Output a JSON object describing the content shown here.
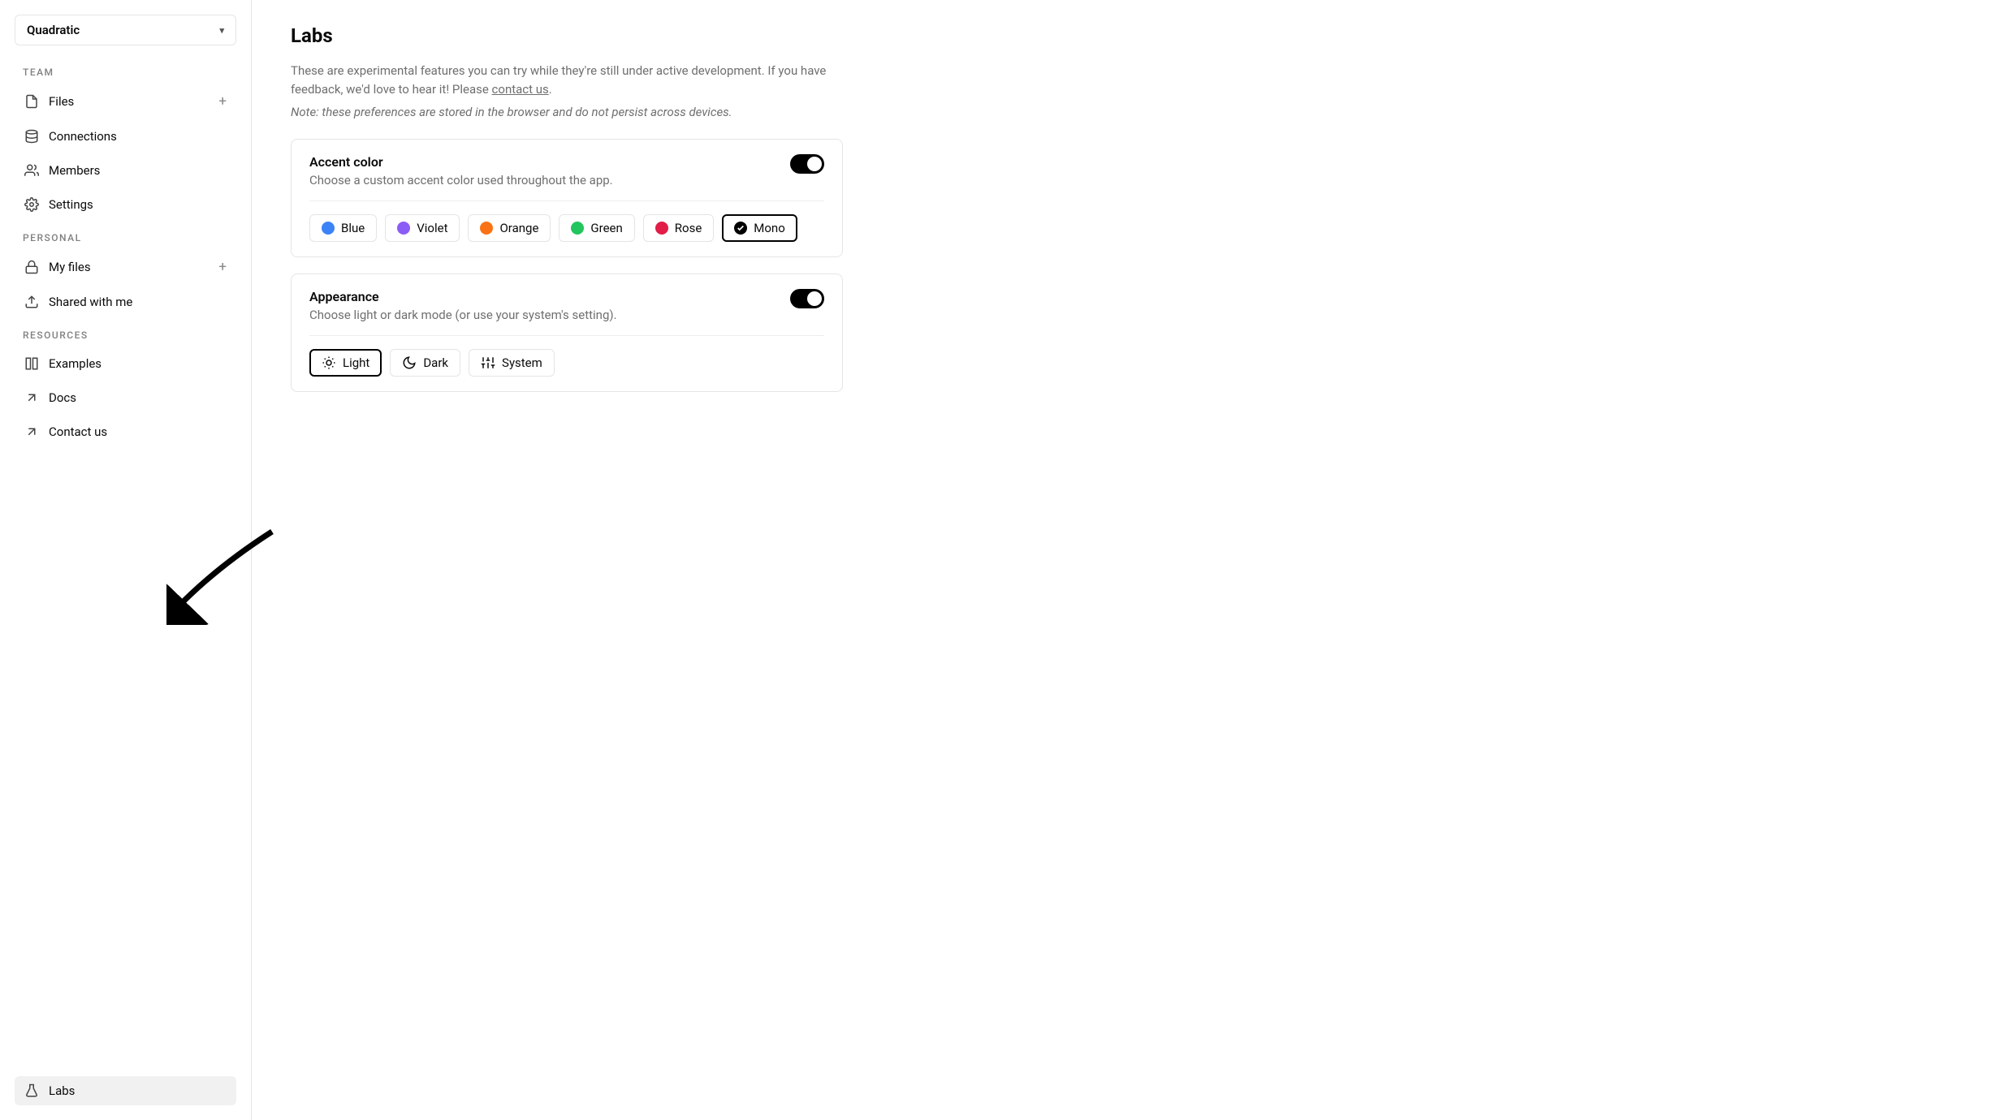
{
  "workspace": {
    "name": "Quadratic"
  },
  "sidebar": {
    "sections": {
      "team": {
        "label": "TEAM",
        "items": [
          {
            "label": "Files",
            "icon": "file",
            "plus": true
          },
          {
            "label": "Connections",
            "icon": "database"
          },
          {
            "label": "Members",
            "icon": "people"
          },
          {
            "label": "Settings",
            "icon": "gear"
          }
        ]
      },
      "personal": {
        "label": "PERSONAL",
        "items": [
          {
            "label": "My files",
            "icon": "lock",
            "plus": true
          },
          {
            "label": "Shared with me",
            "icon": "share"
          }
        ]
      },
      "resources": {
        "label": "RESOURCES",
        "items": [
          {
            "label": "Examples",
            "icon": "layout"
          },
          {
            "label": "Docs",
            "icon": "arrow-ne"
          },
          {
            "label": "Contact us",
            "icon": "arrow-ne"
          }
        ]
      }
    },
    "bottom": {
      "label": "Labs",
      "icon": "flask",
      "active": true
    }
  },
  "page": {
    "title": "Labs",
    "intro_before_link": "These are experimental features you can try while they're still under active development. If you have feedback, we'd love to hear it! Please ",
    "intro_link": "contact us",
    "intro_after_link": ".",
    "note": "Note: these preferences are stored in the browser and do not persist across devices."
  },
  "accent": {
    "title": "Accent color",
    "subtitle": "Choose a custom accent color used throughout the app.",
    "toggle_on": true,
    "options": [
      {
        "label": "Blue",
        "color": "#3b82f6",
        "selected": false
      },
      {
        "label": "Violet",
        "color": "#8b5cf6",
        "selected": false
      },
      {
        "label": "Orange",
        "color": "#f97316",
        "selected": false
      },
      {
        "label": "Green",
        "color": "#22c55e",
        "selected": false
      },
      {
        "label": "Rose",
        "color": "#e11d48",
        "selected": false
      },
      {
        "label": "Mono",
        "color": "#000000",
        "selected": true
      }
    ]
  },
  "appearance": {
    "title": "Appearance",
    "subtitle": "Choose light or dark mode (or use your system's setting).",
    "toggle_on": true,
    "options": [
      {
        "label": "Light",
        "icon": "sun",
        "selected": true
      },
      {
        "label": "Dark",
        "icon": "moon",
        "selected": false
      },
      {
        "label": "System",
        "icon": "sliders",
        "selected": false
      }
    ]
  },
  "annotation": {
    "arrow_color": "#000000",
    "points_to": "sidebar-item-labs"
  }
}
